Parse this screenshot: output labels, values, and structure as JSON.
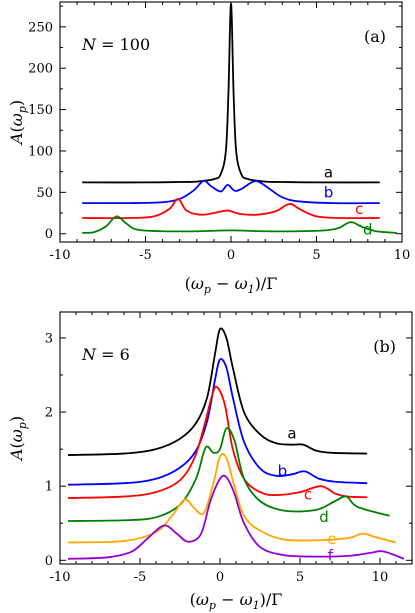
{
  "chart_data": [
    {
      "type": "line",
      "panel_label": "(a)",
      "annotation": "N = 100",
      "ylabel": "A(ω_p)",
      "xlabel": "(ω_p − ω_1)/Γ",
      "xlim": [
        -10,
        10
      ],
      "ylim": [
        -10,
        280
      ],
      "xticks": [
        -10,
        -5,
        0,
        5,
        10
      ],
      "yticks": [
        0,
        50,
        100,
        150,
        200,
        250
      ],
      "series": [
        {
          "name": "a",
          "color": "#000000",
          "x": [
            -8.7,
            -5,
            -3,
            -2,
            -1,
            -0.6,
            -0.3,
            -0.15,
            0,
            0.15,
            0.3,
            0.6,
            1,
            2,
            3,
            5,
            8.7
          ],
          "y": [
            62,
            62,
            62.5,
            63,
            66,
            72,
            100,
            170,
            278,
            170,
            100,
            72,
            66,
            63,
            62.5,
            62,
            62
          ]
        },
        {
          "name": "b",
          "color": "#0000ff",
          "x": [
            -8.7,
            -6,
            -4,
            -3,
            -2.2,
            -1.6,
            -1.2,
            -0.6,
            -0.2,
            0.2,
            0.6,
            1.2,
            1.6,
            2.2,
            3,
            4,
            6,
            8.7
          ],
          "y": [
            37,
            37,
            38,
            42,
            52,
            64,
            58,
            51,
            59,
            52,
            54,
            62,
            63,
            55,
            44,
            39,
            37,
            37
          ]
        },
        {
          "name": "c",
          "color": "#ff0000",
          "x": [
            -8.7,
            -6,
            -4.5,
            -3.6,
            -3.1,
            -2.6,
            -1.8,
            -1,
            -0.2,
            0.5,
            1.5,
            2.6,
            3.1,
            3.5,
            4,
            5,
            6.5,
            8.7
          ],
          "y": [
            19,
            19,
            21,
            30,
            42,
            28,
            23,
            25,
            28,
            24,
            23,
            27,
            33,
            36,
            30,
            21,
            19,
            19
          ]
        },
        {
          "name": "d",
          "color": "#008000",
          "x": [
            -8.7,
            -8,
            -7.3,
            -6.7,
            -6.1,
            -5.5,
            -4,
            -2,
            0,
            2,
            4,
            5.5,
            6.3,
            7,
            7.7,
            8.5,
            9.7
          ],
          "y": [
            1,
            2,
            9,
            21,
            12,
            5,
            3,
            3,
            4,
            3,
            3,
            4,
            7,
            14,
            8,
            3,
            1
          ]
        }
      ],
      "curve_labels": [
        {
          "text": "a",
          "x": 5.7,
          "y": 68
        },
        {
          "text": "b",
          "x": 5.7,
          "y": 44
        },
        {
          "text": "c",
          "x": 7.5,
          "y": 24
        },
        {
          "text": "d",
          "x": 8.0,
          "y": -1
        }
      ]
    },
    {
      "type": "line",
      "panel_label": "(b)",
      "annotation": "N = 6",
      "ylabel": "A(ω_p)",
      "xlabel": "(ω_p − ω_1)/Γ",
      "xlim": [
        -10,
        12
      ],
      "ylim": [
        -0.05,
        3.35
      ],
      "xticks": [
        -10,
        -5,
        0,
        5,
        10
      ],
      "yticks": [
        0,
        1,
        2,
        3
      ],
      "series": [
        {
          "name": "a",
          "color": "#000000",
          "x": [
            -9.5,
            -6,
            -4,
            -2.5,
            -1.5,
            -0.8,
            -0.3,
            0,
            0.4,
            0.8,
            1.5,
            2.5,
            3.5,
            4.5,
            5.2,
            6,
            7,
            9.2
          ],
          "y": [
            1.42,
            1.44,
            1.5,
            1.64,
            1.85,
            2.2,
            2.8,
            3.12,
            3.0,
            2.6,
            2.0,
            1.7,
            1.58,
            1.56,
            1.56,
            1.48,
            1.45,
            1.44
          ]
        },
        {
          "name": "b",
          "color": "#0000ff",
          "x": [
            -9.5,
            -6,
            -4,
            -2.5,
            -1.5,
            -0.8,
            -0.3,
            0,
            0.4,
            0.8,
            1.5,
            2.5,
            3.5,
            4.5,
            5.3,
            6.2,
            7.2,
            9.2
          ],
          "y": [
            1.02,
            1.04,
            1.1,
            1.25,
            1.48,
            1.88,
            2.45,
            2.71,
            2.6,
            2.2,
            1.6,
            1.24,
            1.14,
            1.16,
            1.2,
            1.1,
            1.06,
            1.04
          ]
        },
        {
          "name": "c",
          "color": "#ff0000",
          "x": [
            -9.5,
            -6,
            -4,
            -2.5,
            -1.6,
            -1,
            -0.5,
            -0.2,
            0.3,
            0.8,
            1.5,
            2.5,
            3.5,
            5,
            6.3,
            7.2,
            8,
            9.2
          ],
          "y": [
            0.84,
            0.86,
            0.92,
            1.08,
            1.38,
            1.8,
            2.22,
            2.34,
            2.1,
            1.5,
            1.1,
            0.92,
            0.88,
            0.92,
            1.0,
            0.9,
            0.86,
            0.85
          ]
        },
        {
          "name": "d",
          "color": "#008000",
          "x": [
            -9.5,
            -6,
            -4,
            -2.5,
            -1.5,
            -0.9,
            -0.4,
            0,
            0.4,
            0.9,
            1.5,
            2.5,
            4,
            6,
            7.2,
            7.9,
            8.6,
            10.6
          ],
          "y": [
            0.53,
            0.54,
            0.58,
            0.75,
            1.1,
            1.52,
            1.45,
            1.5,
            1.78,
            1.62,
            1.1,
            0.8,
            0.67,
            0.68,
            0.8,
            0.86,
            0.72,
            0.6
          ]
        },
        {
          "name": "e",
          "color": "#ffa500",
          "x": [
            -9.5,
            -6,
            -4,
            -3,
            -2.2,
            -1.6,
            -1,
            -0.4,
            0,
            0.4,
            0.9,
            1.5,
            2.5,
            4,
            6,
            8,
            8.9,
            9.6,
            11
          ],
          "y": [
            0.24,
            0.26,
            0.38,
            0.6,
            0.82,
            0.7,
            0.64,
            1.05,
            1.4,
            1.38,
            1.0,
            0.6,
            0.4,
            0.28,
            0.27,
            0.3,
            0.36,
            0.32,
            0.24
          ]
        },
        {
          "name": "f",
          "color": "#9400d3",
          "x": [
            -9.5,
            -7,
            -5.5,
            -4.5,
            -3.5,
            -2.7,
            -2,
            -1.2,
            -0.6,
            0,
            0.4,
            0.9,
            1.5,
            2.5,
            4,
            6,
            8,
            9.4,
            10.2,
            11.5
          ],
          "y": [
            0.02,
            0.04,
            0.12,
            0.3,
            0.47,
            0.36,
            0.25,
            0.35,
            0.8,
            1.1,
            1.12,
            0.9,
            0.5,
            0.18,
            0.07,
            0.05,
            0.06,
            0.1,
            0.12,
            0.02
          ]
        }
      ],
      "curve_labels": [
        {
          "text": "a",
          "x": 4.5,
          "y": 1.64
        },
        {
          "text": "b",
          "x": 3.9,
          "y": 1.14
        },
        {
          "text": "c",
          "x": 5.5,
          "y": 0.82
        },
        {
          "text": "d",
          "x": 6.5,
          "y": 0.52
        },
        {
          "text": "e",
          "x": 7.0,
          "y": 0.22
        },
        {
          "text": "f",
          "x": 6.9,
          "y": 0.0
        }
      ]
    }
  ]
}
